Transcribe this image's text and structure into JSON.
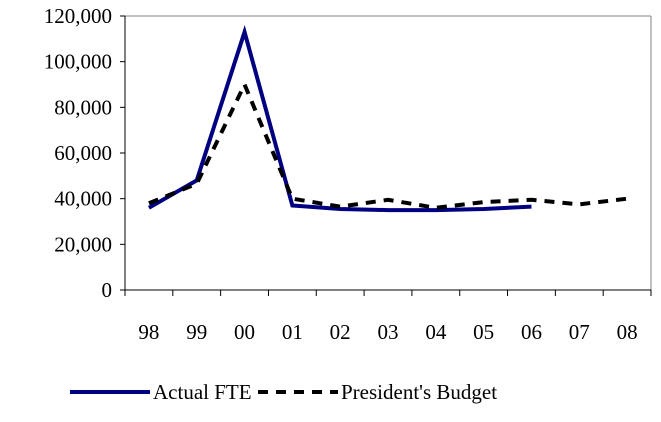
{
  "chart_data": {
    "type": "line",
    "categories": [
      "98",
      "99",
      "00",
      "01",
      "02",
      "03",
      "04",
      "05",
      "06",
      "07",
      "08"
    ],
    "y_ticks": [
      "0",
      "20,000",
      "40,000",
      "60,000",
      "80,000",
      "100,000",
      "120,000"
    ],
    "ylim": [
      0,
      120000
    ],
    "legend_position": "bottom",
    "grid": false,
    "series": [
      {
        "name": "Actual FTE",
        "style": "solid",
        "color": "#000080",
        "values": [
          36000,
          48000,
          113000,
          37000,
          35500,
          35000,
          35000,
          35500,
          36500,
          null,
          null
        ]
      },
      {
        "name": "President's Budget",
        "style": "dashed",
        "color": "#000000",
        "values": [
          38000,
          46500,
          90000,
          40000,
          36500,
          39500,
          36000,
          38500,
          39500,
          37500,
          40000
        ]
      }
    ]
  }
}
